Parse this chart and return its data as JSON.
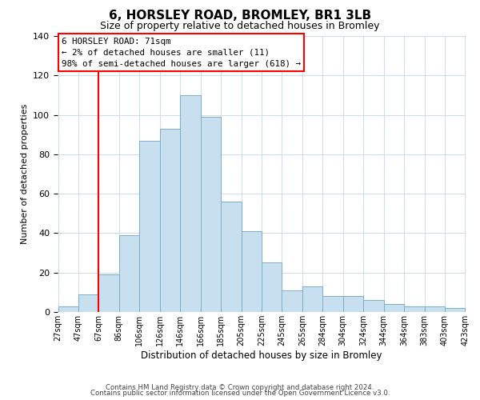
{
  "title": "6, HORSLEY ROAD, BROMLEY, BR1 3LB",
  "subtitle": "Size of property relative to detached houses in Bromley",
  "xlabel": "Distribution of detached houses by size in Bromley",
  "ylabel": "Number of detached properties",
  "bar_color": "#c8dff0",
  "bar_edge_color": "#7aaec8",
  "categories": [
    "27sqm",
    "47sqm",
    "67sqm",
    "86sqm",
    "106sqm",
    "126sqm",
    "146sqm",
    "166sqm",
    "185sqm",
    "205sqm",
    "225sqm",
    "245sqm",
    "265sqm",
    "284sqm",
    "304sqm",
    "324sqm",
    "344sqm",
    "364sqm",
    "383sqm",
    "403sqm",
    "423sqm"
  ],
  "values": [
    3,
    9,
    19,
    39,
    87,
    93,
    110,
    99,
    56,
    41,
    25,
    11,
    13,
    8,
    8,
    6,
    4,
    3,
    3,
    2
  ],
  "ylim": [
    0,
    140
  ],
  "yticks": [
    0,
    20,
    40,
    60,
    80,
    100,
    120,
    140
  ],
  "property_line_x": 2,
  "annotation_title": "6 HORSLEY ROAD: 71sqm",
  "annotation_line1": "← 2% of detached houses are smaller (11)",
  "annotation_line2": "98% of semi-detached houses are larger (618) →",
  "footer1": "Contains HM Land Registry data © Crown copyright and database right 2024.",
  "footer2": "Contains public sector information licensed under the Open Government Licence v3.0.",
  "bg_color": "#ffffff",
  "grid_color": "#d0dce8"
}
